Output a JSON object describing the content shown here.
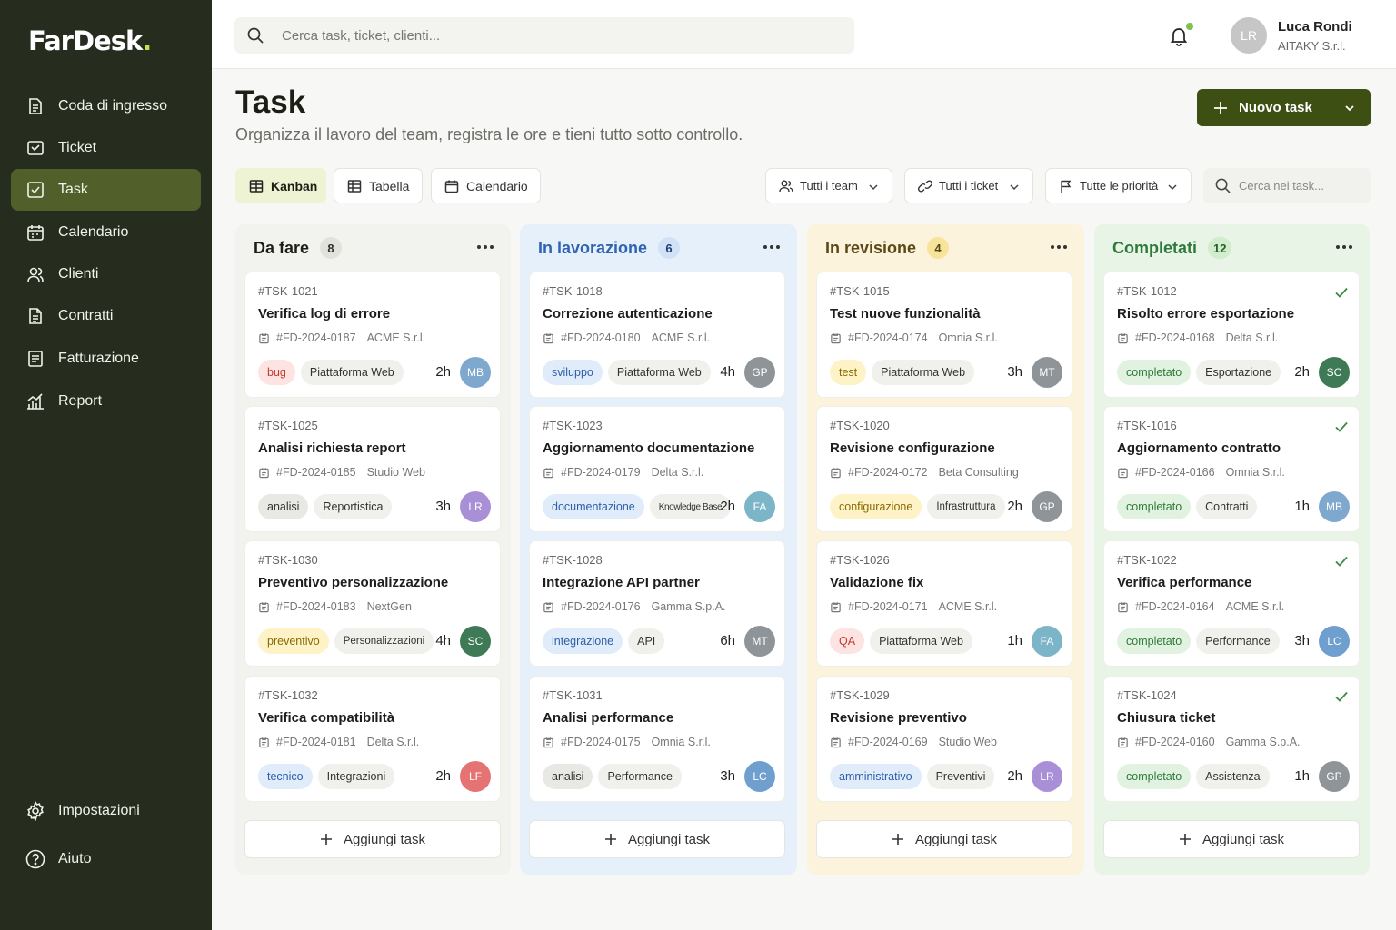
{
  "app": {
    "logo": "FarDesk",
    "logo_dot": "."
  },
  "sidebar": {
    "items": [
      {
        "label": "Coda di ingresso",
        "icon": "inbox-icon",
        "active": false
      },
      {
        "label": "Ticket",
        "icon": "ticket-icon",
        "active": false
      },
      {
        "label": "Task",
        "icon": "checkbox-icon",
        "active": true
      },
      {
        "label": "Calendario",
        "icon": "calendar-icon",
        "active": false
      },
      {
        "label": "Clienti",
        "icon": "users-icon",
        "active": false
      },
      {
        "label": "Contratti",
        "icon": "document-icon",
        "active": false
      },
      {
        "label": "Fatturazione",
        "icon": "invoice-icon",
        "active": false
      },
      {
        "label": "Report",
        "icon": "chart-icon",
        "active": false
      }
    ],
    "bottom": [
      {
        "label": "Impostazioni",
        "icon": "gear-icon"
      },
      {
        "label": "Aiuto",
        "icon": "help-icon"
      }
    ]
  },
  "topbar": {
    "search_placeholder": "Cerca task, ticket, clienti...",
    "user": {
      "initials": "LR",
      "name": "Luca Rondi",
      "org": "AITAKY S.r.l."
    }
  },
  "page": {
    "title": "Task",
    "subtitle": "Organizza il lavoro del team, registra le ore e tieni tutto sotto controllo.",
    "new_task_label": "Nuovo task"
  },
  "views": [
    {
      "label": "Kanban",
      "active": true
    },
    {
      "label": "Tabella",
      "active": false
    },
    {
      "label": "Calendario",
      "active": false
    }
  ],
  "filters": {
    "team": "Tutti i team",
    "ticket": "Tutti i ticket",
    "priority": "Tutte le priorità",
    "search_placeholder": "Cerca nei task..."
  },
  "add_task_label": "Aggiungi task",
  "colors": {
    "sidebar_bg": "#262c1e",
    "accent": "#3d4f12",
    "active_nav": "#51602b",
    "avatars": {
      "MB": "#7fa8cf",
      "LR": "#a98fd6",
      "SC": "#3f7a56",
      "LF": "#e67373",
      "GP": "#8f9499",
      "MT": "#8f9499",
      "FA": "#7cb4c8",
      "LC": "#6f9fcf"
    }
  },
  "columns": [
    {
      "title": "Da fare",
      "count": "8",
      "bg": "#f2f2ee",
      "title_color": "#1d1f17",
      "count_bg": "#e2e2dd",
      "count_color": "#333",
      "cards": [
        {
          "id": "#TSK-1021",
          "title": "Verifica log di errore",
          "ref": "#FD-2024-0187",
          "client": "ACME S.r.l.",
          "tags": [
            {
              "label": "bug",
              "bg": "#fde3e1",
              "color": "#c43a2f"
            },
            {
              "label": "Piattaforma Web"
            }
          ],
          "hours": "2h",
          "avatar": "MB",
          "done": false
        },
        {
          "id": "#TSK-1025",
          "title": "Analisi richiesta report",
          "ref": "#FD-2024-0185",
          "client": "Studio Web",
          "tags": [
            {
              "label": "analisi",
              "bg": "#e8e8e4",
              "color": "#333"
            },
            {
              "label": "Reportistica"
            }
          ],
          "hours": "3h",
          "avatar": "LR",
          "done": false
        },
        {
          "id": "#TSK-1030",
          "title": "Preventivo personalizzazione",
          "ref": "#FD-2024-0183",
          "client": "NextGen",
          "tags": [
            {
              "label": "preventivo",
              "bg": "#fdf3c6",
              "color": "#8a6a00"
            },
            {
              "label": "Personalizzazioni",
              "small": true
            }
          ],
          "hours": "4h",
          "avatar": "SC",
          "done": false
        },
        {
          "id": "#TSK-1032",
          "title": "Verifica compatibilità",
          "ref": "#FD-2024-0181",
          "client": "Delta S.r.l.",
          "tags": [
            {
              "label": "tecnico",
              "bg": "#e1ecfb",
              "color": "#2c5fa8"
            },
            {
              "label": "Integrazioni"
            }
          ],
          "hours": "2h",
          "avatar": "LF",
          "done": false
        }
      ]
    },
    {
      "title": "In lavorazione",
      "count": "6",
      "bg": "#e6f0fb",
      "title_color": "#2f63b3",
      "count_bg": "#d1e2f6",
      "count_color": "#1f3f70",
      "cards": [
        {
          "id": "#TSK-1018",
          "title": "Correzione autenticazione",
          "ref": "#FD-2024-0180",
          "client": "ACME S.r.l.",
          "tags": [
            {
              "label": "sviluppo",
              "bg": "#e1ecfb",
              "color": "#2c5fa8"
            },
            {
              "label": "Piattaforma Web"
            }
          ],
          "hours": "4h",
          "avatar": "GP",
          "done": false
        },
        {
          "id": "#TSK-1023",
          "title": "Aggiornamento documentazione",
          "ref": "#FD-2024-0179",
          "client": "Delta S.r.l.",
          "tags": [
            {
              "label": "documentazione",
              "bg": "#e1ecfb",
              "color": "#2c5fa8"
            },
            {
              "label": "Knowledge Base",
              "tiny": true
            }
          ],
          "hours": "2h",
          "avatar": "FA",
          "done": false
        },
        {
          "id": "#TSK-1028",
          "title": "Integrazione API partner",
          "ref": "#FD-2024-0176",
          "client": "Gamma S.p.A.",
          "tags": [
            {
              "label": "integrazione",
              "bg": "#e1ecfb",
              "color": "#2c5fa8"
            },
            {
              "label": "API"
            }
          ],
          "hours": "6h",
          "avatar": "MT",
          "done": false
        },
        {
          "id": "#TSK-1031",
          "title": "Analisi performance",
          "ref": "#FD-2024-0175",
          "client": "Omnia S.r.l.",
          "tags": [
            {
              "label": "analisi",
              "bg": "#e8e8e4",
              "color": "#333"
            },
            {
              "label": "Performance"
            }
          ],
          "hours": "3h",
          "avatar": "LC",
          "done": false
        }
      ]
    },
    {
      "title": "In revisione",
      "count": "4",
      "bg": "#fcf3dc",
      "title_color": "#5b4a17",
      "count_bg": "#f8e39a",
      "count_color": "#5b4a17",
      "cards": [
        {
          "id": "#TSK-1015",
          "title": "Test nuove funzionalità",
          "ref": "#FD-2024-0174",
          "client": "Omnia S.r.l.",
          "tags": [
            {
              "label": "test",
              "bg": "#fdf3c6",
              "color": "#8a6a00"
            },
            {
              "label": "Piattaforma Web"
            }
          ],
          "hours": "3h",
          "avatar": "MT",
          "done": false
        },
        {
          "id": "#TSK-1020",
          "title": "Revisione configurazione",
          "ref": "#FD-2024-0172",
          "client": "Beta Consulting",
          "tags": [
            {
              "label": "configurazione",
              "bg": "#fdf3c6",
              "color": "#8a6a00"
            },
            {
              "label": "Infrastruttura",
              "small": true
            }
          ],
          "hours": "2h",
          "avatar": "GP",
          "done": false
        },
        {
          "id": "#TSK-1026",
          "title": "Validazione fix",
          "ref": "#FD-2024-0171",
          "client": "ACME S.r.l.",
          "tags": [
            {
              "label": "QA",
              "bg": "#fde3e1",
              "color": "#c43a2f"
            },
            {
              "label": "Piattaforma Web"
            }
          ],
          "hours": "1h",
          "avatar": "FA",
          "done": false
        },
        {
          "id": "#TSK-1029",
          "title": "Revisione preventivo",
          "ref": "#FD-2024-0169",
          "client": "Studio Web",
          "tags": [
            {
              "label": "amministrativo",
              "bg": "#e1ecfb",
              "color": "#2c5fa8"
            },
            {
              "label": "Preventivi"
            }
          ],
          "hours": "2h",
          "avatar": "LR",
          "done": false
        }
      ]
    },
    {
      "title": "Completati",
      "count": "12",
      "bg": "#e8f5e6",
      "title_color": "#2f7a3a",
      "count_bg": "#d2ecce",
      "count_color": "#245e2c",
      "cards": [
        {
          "id": "#TSK-1012",
          "title": "Risolto errore esportazione",
          "ref": "#FD-2024-0168",
          "client": "Delta S.r.l.",
          "tags": [
            {
              "label": "completato",
              "bg": "#e1f3e0",
              "color": "#2f7a3a"
            },
            {
              "label": "Esportazione"
            }
          ],
          "hours": "2h",
          "avatar": "SC",
          "done": true
        },
        {
          "id": "#TSK-1016",
          "title": "Aggiornamento contratto",
          "ref": "#FD-2024-0166",
          "client": "Omnia S.r.l.",
          "tags": [
            {
              "label": "completato",
              "bg": "#e1f3e0",
              "color": "#2f7a3a"
            },
            {
              "label": "Contratti"
            }
          ],
          "hours": "1h",
          "avatar": "MB",
          "done": true
        },
        {
          "id": "#TSK-1022",
          "title": "Verifica performance",
          "ref": "#FD-2024-0164",
          "client": "ACME S.r.l.",
          "tags": [
            {
              "label": "completato",
              "bg": "#e1f3e0",
              "color": "#2f7a3a"
            },
            {
              "label": "Performance"
            }
          ],
          "hours": "3h",
          "avatar": "LC",
          "done": true
        },
        {
          "id": "#TSK-1024",
          "title": "Chiusura ticket",
          "ref": "#FD-2024-0160",
          "client": "Gamma S.p.A.",
          "tags": [
            {
              "label": "completato",
              "bg": "#e1f3e0",
              "color": "#2f7a3a"
            },
            {
              "label": "Assistenza"
            }
          ],
          "hours": "1h",
          "avatar": "GP",
          "done": true
        }
      ]
    }
  ]
}
